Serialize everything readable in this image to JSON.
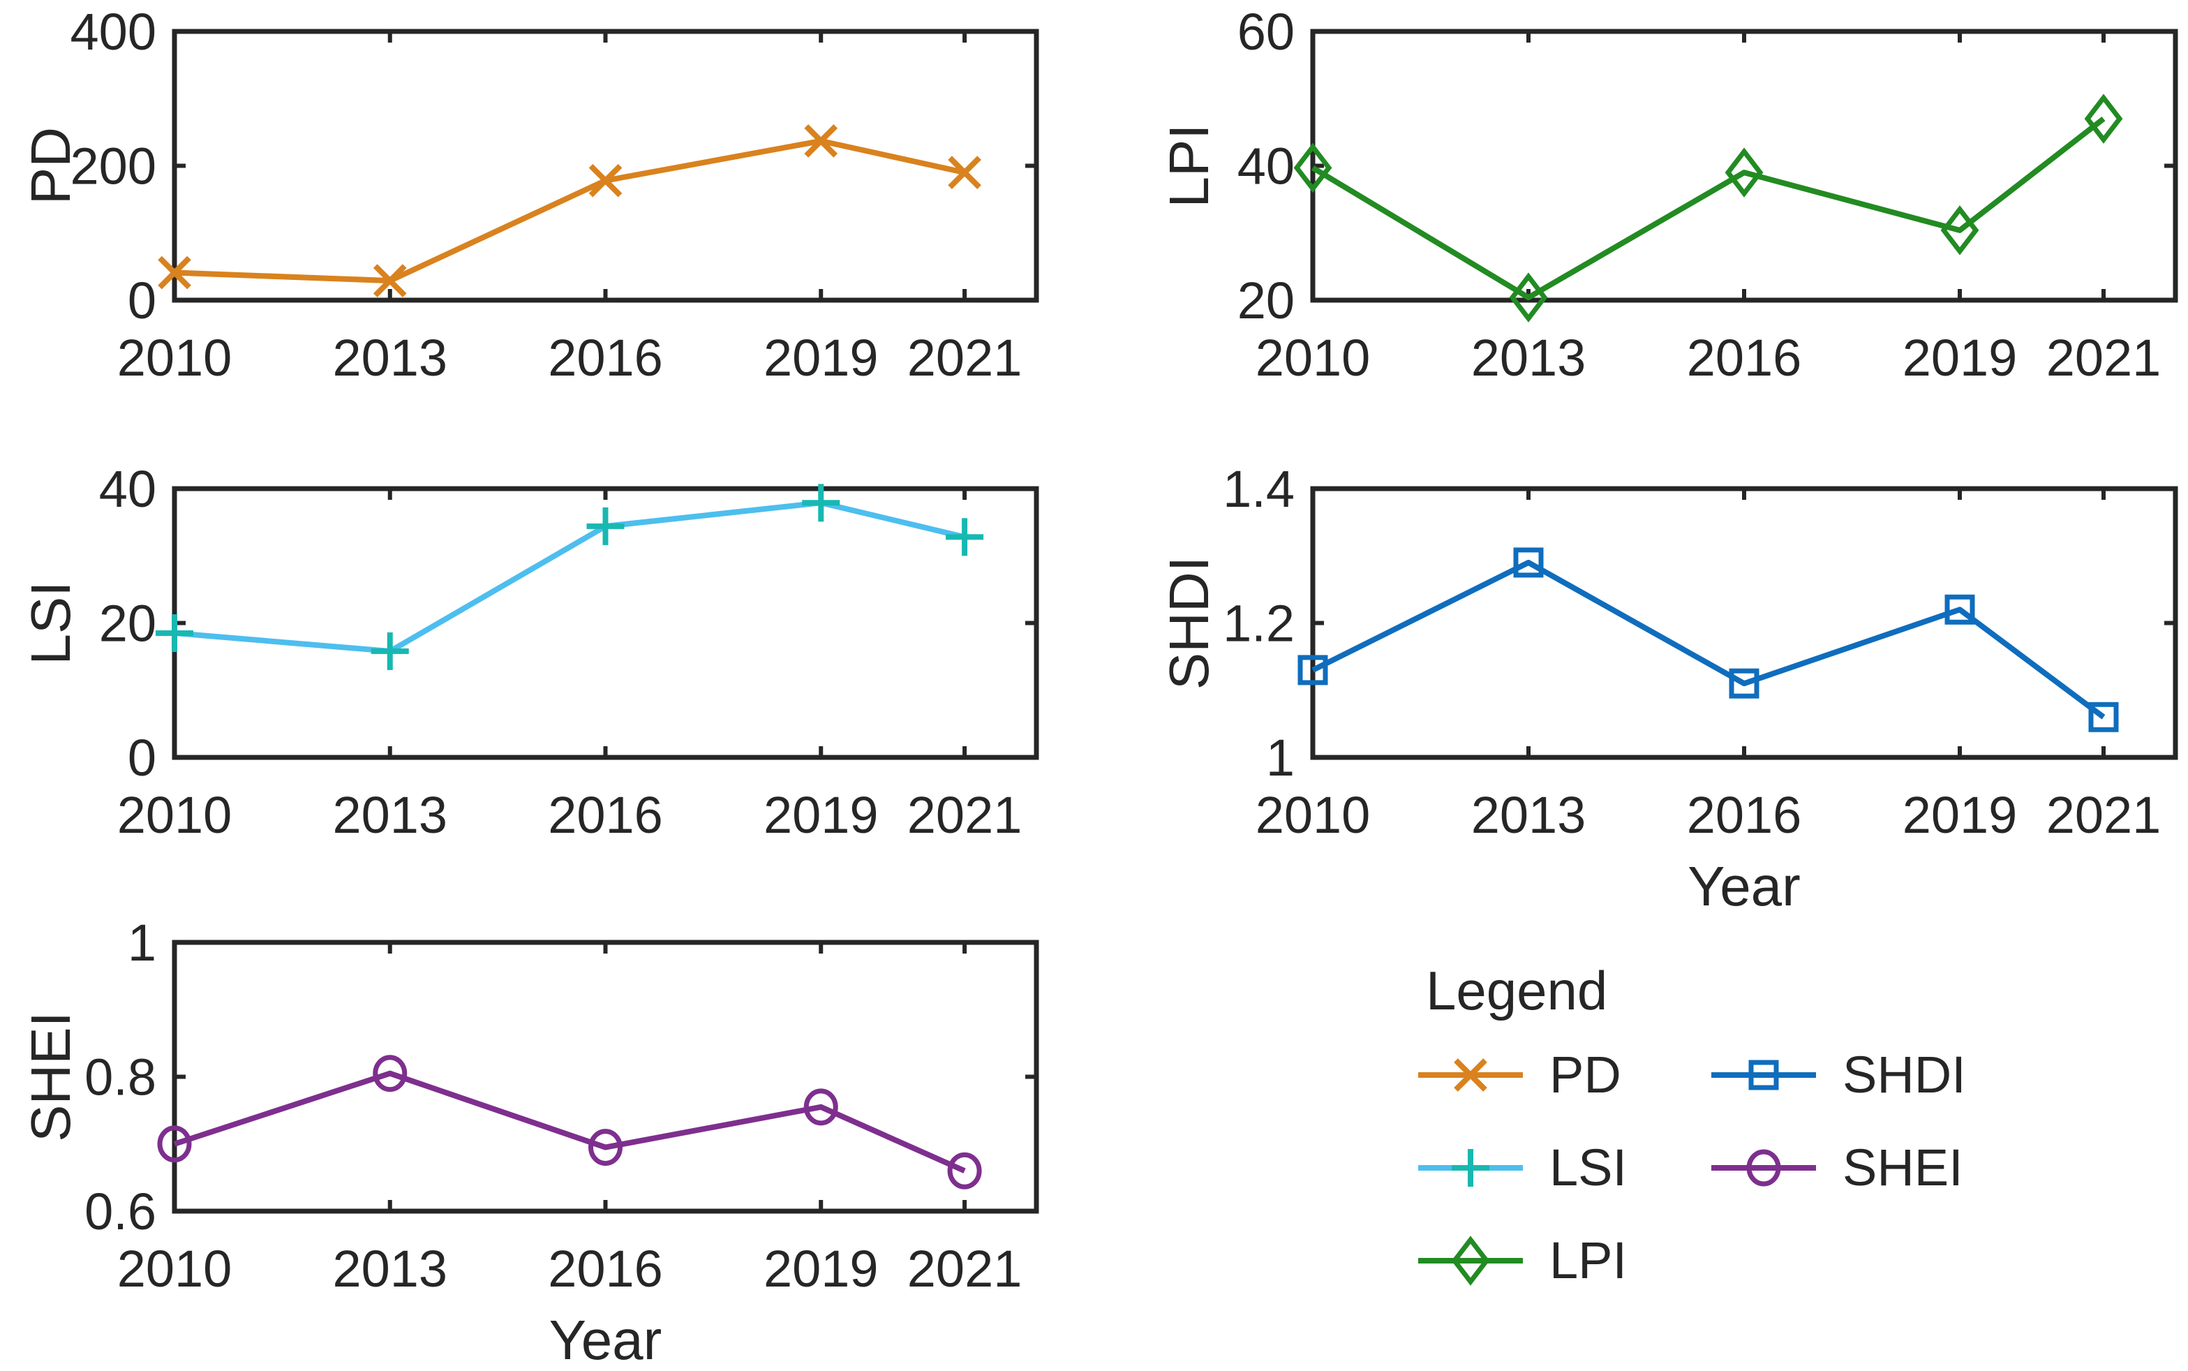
{
  "legend": {
    "title": "Legend",
    "entries": [
      {
        "label": "PD",
        "series_id": "pd"
      },
      {
        "label": "LSI",
        "series_id": "lsi"
      },
      {
        "label": "LPI",
        "series_id": "lpi"
      },
      {
        "label": "SHDI",
        "series_id": "shdi"
      },
      {
        "label": "SHEI",
        "series_id": "shei"
      }
    ]
  },
  "colors": {
    "background": "#FFFFFF",
    "axis": "#262626",
    "text": "#262626",
    "pd_orange": "#D9821E",
    "lsi_line_blue": "#4DBEEE",
    "lsi_marker_teal": "#18B8B2",
    "lpi_green": "#228B22",
    "shdi_blue": "#0F6DBD",
    "shei_purple": "#7E2F8E"
  },
  "chart_data": [
    {
      "id": "pd",
      "type": "line",
      "title": "",
      "ylabel": "PD",
      "xlabel": "",
      "x": [
        2010,
        2013,
        2016,
        2019,
        2021
      ],
      "xtick_labels": [
        "2010",
        "2013",
        "2016",
        "2019",
        "2021"
      ],
      "xlim": [
        2010,
        2022
      ],
      "values": [
        41,
        29,
        178,
        237,
        190
      ],
      "ylim": [
        0,
        400
      ],
      "yticks": [
        0,
        200,
        400
      ],
      "ytick_labels": [
        "0",
        "200",
        "400"
      ],
      "marker": "x",
      "line_color": "#D9821E",
      "marker_color": "#D9821E",
      "grid": false
    },
    {
      "id": "lpi",
      "type": "line",
      "title": "",
      "ylabel": "LPI",
      "xlabel": "",
      "x": [
        2010,
        2013,
        2016,
        2019,
        2021
      ],
      "xtick_labels": [
        "2010",
        "2013",
        "2016",
        "2019",
        "2021"
      ],
      "xlim": [
        2010,
        2022
      ],
      "values": [
        39.7,
        20.4,
        39.0,
        30.4,
        47.0
      ],
      "ylim": [
        20,
        60
      ],
      "yticks": [
        20,
        40,
        60
      ],
      "ytick_labels": [
        "20",
        "40",
        "60"
      ],
      "marker": "diamond",
      "line_color": "#228B22",
      "marker_color": "#228B22",
      "grid": false
    },
    {
      "id": "lsi",
      "type": "line",
      "title": "",
      "ylabel": "LSI",
      "xlabel": "",
      "x": [
        2010,
        2013,
        2016,
        2019,
        2021
      ],
      "xtick_labels": [
        "2010",
        "2013",
        "2016",
        "2019",
        "2021"
      ],
      "xlim": [
        2010,
        2022
      ],
      "values": [
        18.5,
        15.8,
        34.4,
        37.9,
        32.8
      ],
      "ylim": [
        0,
        40
      ],
      "yticks": [
        0,
        20,
        40
      ],
      "ytick_labels": [
        "0",
        "20",
        "40"
      ],
      "marker": "plus",
      "line_color": "#4DBEEE",
      "marker_color": "#18B8B2",
      "grid": false
    },
    {
      "id": "shdi",
      "type": "line",
      "title": "",
      "ylabel": "SHDI",
      "xlabel": "Year",
      "x": [
        2010,
        2013,
        2016,
        2019,
        2021
      ],
      "xtick_labels": [
        "2010",
        "2013",
        "2016",
        "2019",
        "2021"
      ],
      "xlim": [
        2010,
        2022
      ],
      "values": [
        1.13,
        1.29,
        1.11,
        1.22,
        1.06
      ],
      "ylim": [
        1,
        1.4
      ],
      "yticks": [
        1,
        1.2,
        1.4
      ],
      "ytick_labels": [
        "1",
        "1.2",
        "1.4"
      ],
      "marker": "square",
      "line_color": "#0F6DBD",
      "marker_color": "#0F6DBD",
      "grid": false
    },
    {
      "id": "shei",
      "type": "line",
      "title": "",
      "ylabel": "SHEI",
      "xlabel": "Year",
      "x": [
        2010,
        2013,
        2016,
        2019,
        2021
      ],
      "xtick_labels": [
        "2010",
        "2013",
        "2016",
        "2019",
        "2021"
      ],
      "xlim": [
        2010,
        2022
      ],
      "values": [
        0.7,
        0.805,
        0.695,
        0.755,
        0.66
      ],
      "ylim": [
        0.6,
        1
      ],
      "yticks": [
        0.6,
        0.8,
        1
      ],
      "ytick_labels": [
        "0.6",
        "0.8",
        "1"
      ],
      "marker": "circle",
      "line_color": "#7E2F8E",
      "marker_color": "#7E2F8E",
      "grid": false
    }
  ]
}
